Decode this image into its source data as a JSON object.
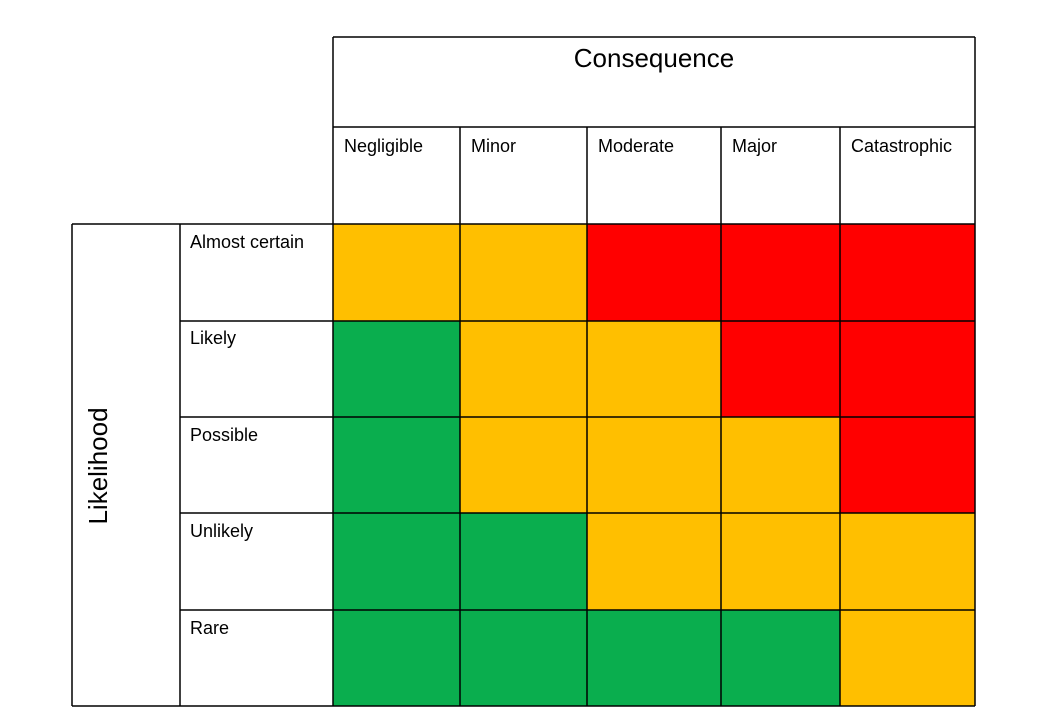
{
  "consequence_title": "Consequence",
  "likelihood_title": "Likelihood",
  "consequence_levels": [
    "Negligible",
    "Minor",
    "Moderate",
    "Major",
    "Catastrophic"
  ],
  "likelihood_levels": [
    "Almost certain",
    "Likely",
    "Possible",
    "Unlikely",
    "Rare"
  ],
  "risk_colors": {
    "low": "#0aae4e",
    "medium": "#ffbf00",
    "high": "#ff0000"
  },
  "risk_matrix": [
    [
      "medium",
      "medium",
      "high",
      "high",
      "high"
    ],
    [
      "low",
      "medium",
      "medium",
      "high",
      "high"
    ],
    [
      "low",
      "medium",
      "medium",
      "medium",
      "high"
    ],
    [
      "low",
      "low",
      "medium",
      "medium",
      "medium"
    ],
    [
      "low",
      "low",
      "low",
      "low",
      "medium"
    ]
  ]
}
